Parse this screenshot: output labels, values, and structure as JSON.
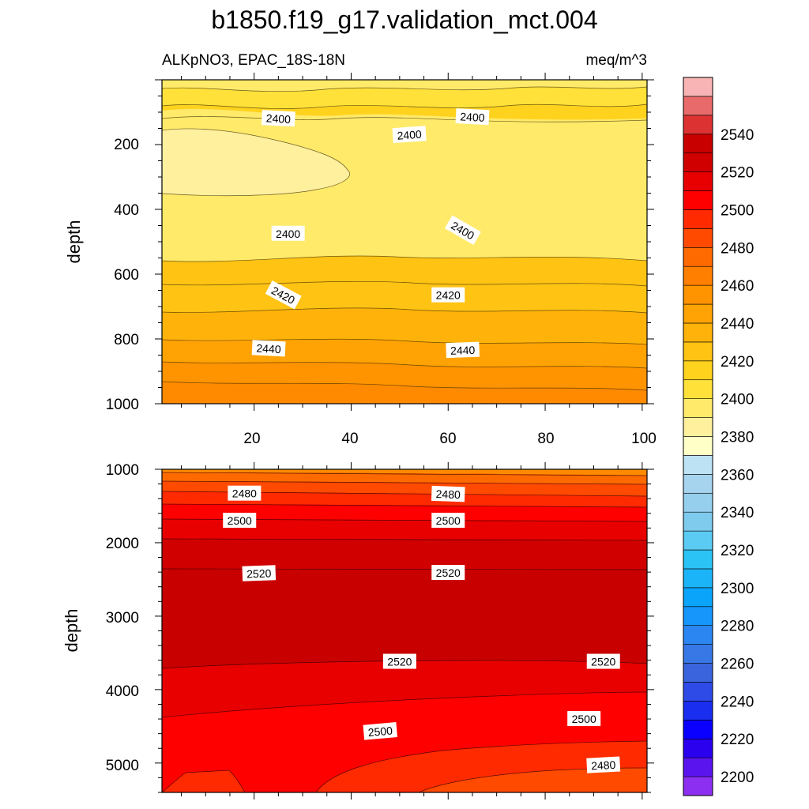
{
  "chart_data": {
    "type": "contour",
    "title": "b1850.f19_g17.validation_mct.004",
    "subtitle_left": "ALKpNO3, EPAC_18S-18N",
    "subtitle_right": "meq/m^3",
    "units": "meq/m^3",
    "panels": [
      {
        "name": "upper",
        "ylabel": "depth",
        "xlim": [
          1,
          101
        ],
        "ylim": [
          0,
          1000
        ],
        "yreversed": true,
        "xticks": [
          "20",
          "40",
          "60",
          "80",
          "100"
        ],
        "yticks": [
          "200",
          "400",
          "600",
          "800",
          "1000"
        ],
        "contour_labels": [
          {
            "text": "2400",
            "x": 25,
            "depth": 120
          },
          {
            "text": "2400",
            "x": 65,
            "depth": 115
          },
          {
            "text": "2400",
            "x": 52,
            "depth": 170
          },
          {
            "text": "2400",
            "x": 27,
            "depth": 475
          },
          {
            "text": "2400",
            "x": 63,
            "depth": 465
          },
          {
            "text": "2420",
            "x": 26,
            "depth": 665
          },
          {
            "text": "2420",
            "x": 60,
            "depth": 665
          },
          {
            "text": "2440",
            "x": 23,
            "depth": 830
          },
          {
            "text": "2440",
            "x": 63,
            "depth": 835
          }
        ]
      },
      {
        "name": "lower",
        "ylabel": "depth",
        "xlim": [
          1,
          101
        ],
        "ylim": [
          1000,
          5400
        ],
        "yreversed": true,
        "yticks": [
          "1000",
          "2000",
          "3000",
          "4000",
          "5000"
        ],
        "contour_labels": [
          {
            "text": "2480",
            "x": 18,
            "depth": 1330
          },
          {
            "text": "2480",
            "x": 60,
            "depth": 1340
          },
          {
            "text": "2500",
            "x": 17,
            "depth": 1700
          },
          {
            "text": "2500",
            "x": 60,
            "depth": 1700
          },
          {
            "text": "2520",
            "x": 21,
            "depth": 2420
          },
          {
            "text": "2520",
            "x": 60,
            "depth": 2410
          },
          {
            "text": "2520",
            "x": 50,
            "depth": 3620
          },
          {
            "text": "2520",
            "x": 92,
            "depth": 3620
          },
          {
            "text": "2500",
            "x": 46,
            "depth": 4570
          },
          {
            "text": "2500",
            "x": 88,
            "depth": 4400
          },
          {
            "text": "2480",
            "x": 92,
            "depth": 5030
          }
        ]
      }
    ],
    "colorbar": {
      "levels": [
        2200,
        2210,
        2220,
        2230,
        2240,
        2250,
        2260,
        2270,
        2280,
        2290,
        2300,
        2310,
        2320,
        2330,
        2340,
        2350,
        2360,
        2370,
        2380,
        2390,
        2400,
        2410,
        2420,
        2430,
        2440,
        2450,
        2460,
        2470,
        2480,
        2490,
        2500,
        2510,
        2520,
        2530,
        2540,
        2550
      ],
      "labels": [
        "2200",
        "2220",
        "2240",
        "2260",
        "2280",
        "2300",
        "2320",
        "2340",
        "2360",
        "2380",
        "2400",
        "2420",
        "2440",
        "2460",
        "2480",
        "2500",
        "2520",
        "2540"
      ],
      "colors": [
        "#8c2ff0",
        "#5a14ee",
        "#2a00ee",
        "#0a00ff",
        "#1a2ef0",
        "#2e4be8",
        "#3a64dd",
        "#3878e6",
        "#2b86f1",
        "#1696fa",
        "#0aa4fa",
        "#1cb4f8",
        "#2bc2f5",
        "#5ccbf3",
        "#7ecbee",
        "#96cfed",
        "#a6d3ee",
        "#bde2f3",
        "#ffffc8",
        "#fff09e",
        "#ffea6a",
        "#ffe13a",
        "#ffd21e",
        "#ffc314",
        "#ffb30a",
        "#ffa304",
        "#ff9300",
        "#ff7f00",
        "#ff6a00",
        "#ff4a00",
        "#ff2a00",
        "#ff0000",
        "#e80000",
        "#d10000",
        "#c80000",
        "#dc3232",
        "#e86a6a",
        "#f8b4b4"
      ]
    }
  }
}
